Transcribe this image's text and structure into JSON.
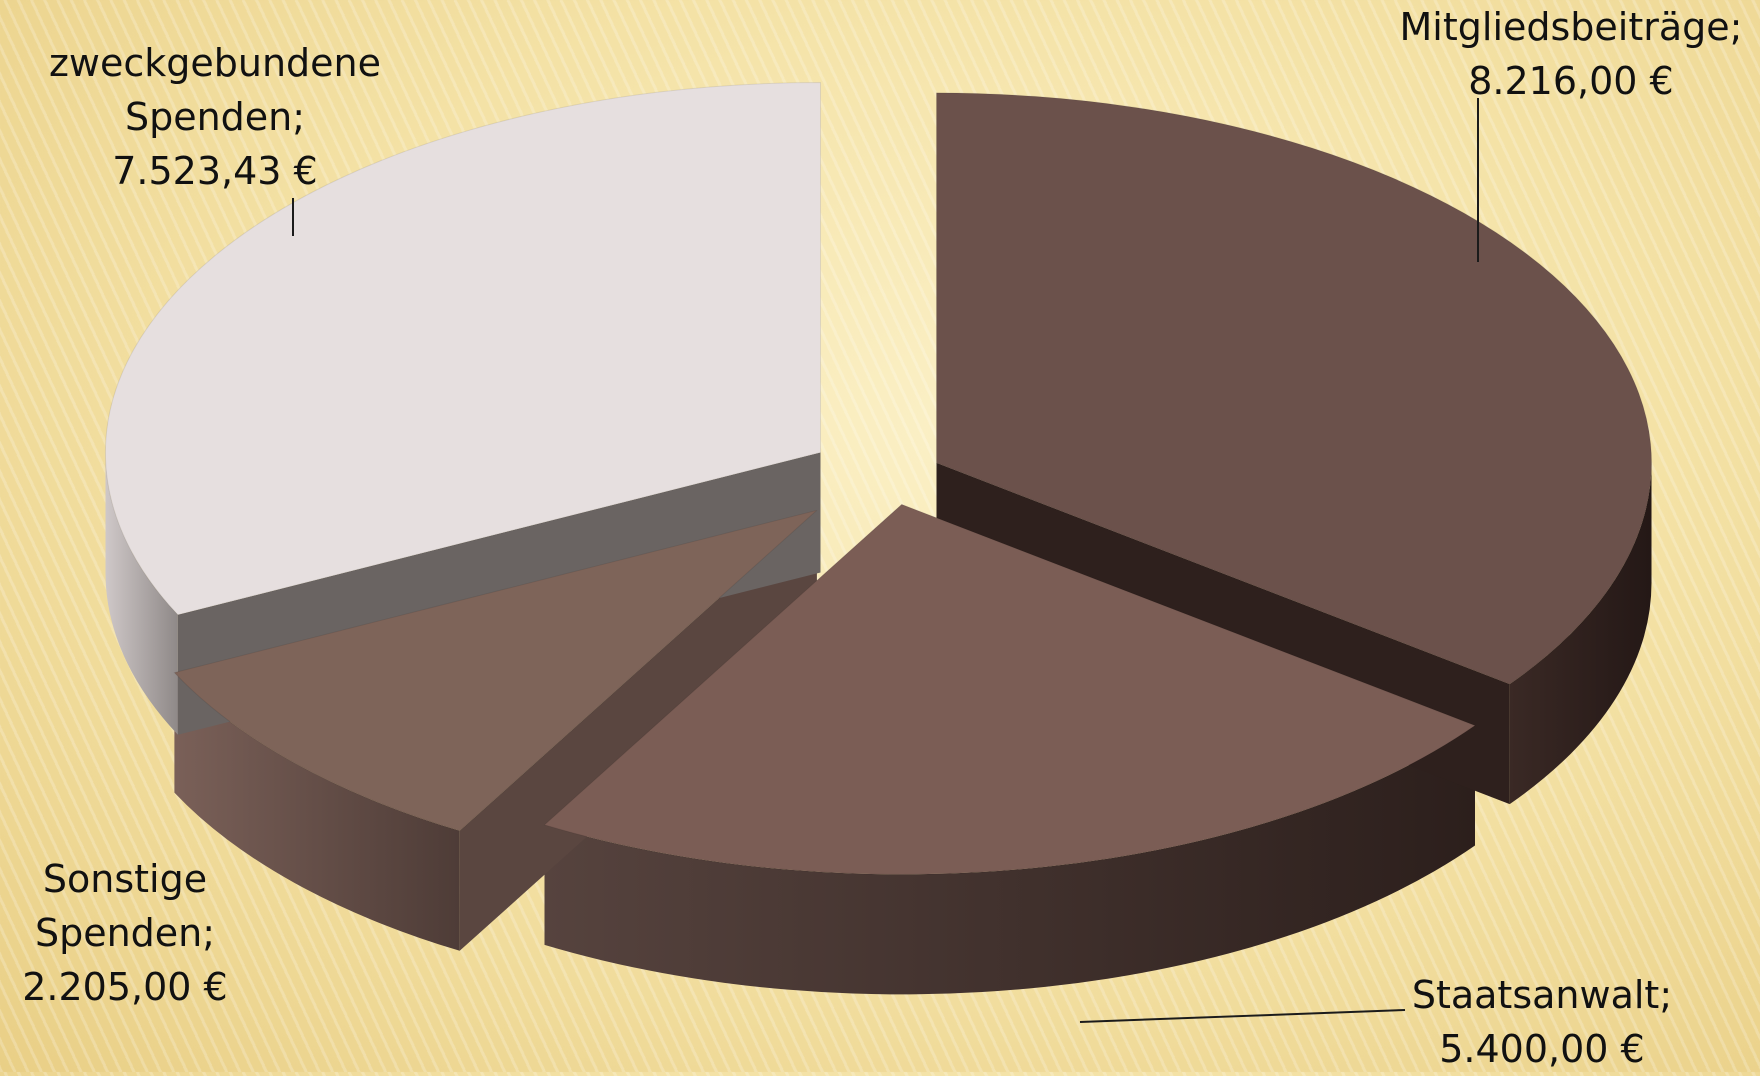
{
  "chart_data": {
    "type": "pie",
    "title": "",
    "categories": [
      "Mitgliedsbeiträge",
      "Staatsanwalt",
      "Sonstige Spenden",
      "zweckgebundene Spenden"
    ],
    "values": [
      8216.0,
      5400.0,
      2205.0,
      7523.43
    ],
    "display_values": [
      "8.216,00 €",
      "5.400,00 €",
      "2.205,00 €",
      "7.523,43 €"
    ],
    "label_lines": [
      [
        "Mitgliedsbeiträge;",
        "8.216,00 €"
      ],
      [
        "Staatsanwalt;",
        "5.400,00 €"
      ],
      [
        "Sonstige",
        "Spenden;",
        "2.205,00 €"
      ],
      [
        "zweckgebundene",
        "Spenden;",
        "7.523,43 €"
      ]
    ],
    "colors": [
      "#6b514b",
      "#7b5d55",
      "#7e6459",
      "#e6dfdf"
    ],
    "side_colors": [
      "#2e201d",
      "#3f2e2a",
      "#5a4640",
      "#6a6462"
    ],
    "exploded": true,
    "three_d": true,
    "legend": "none"
  }
}
